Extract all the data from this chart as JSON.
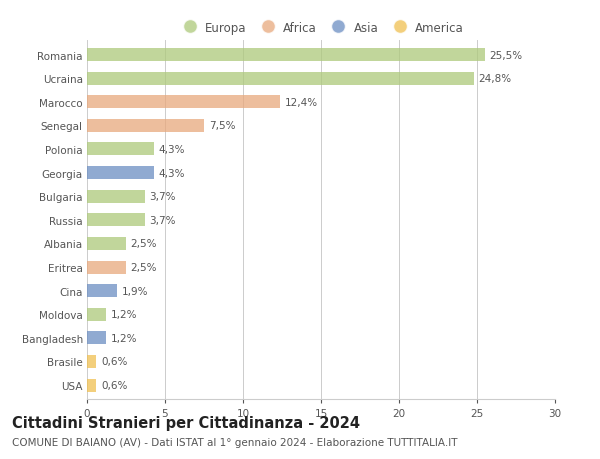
{
  "countries": [
    "Romania",
    "Ucraina",
    "Marocco",
    "Senegal",
    "Polonia",
    "Georgia",
    "Bulgaria",
    "Russia",
    "Albania",
    "Eritrea",
    "Cina",
    "Moldova",
    "Bangladesh",
    "Brasile",
    "USA"
  ],
  "values": [
    25.5,
    24.8,
    12.4,
    7.5,
    4.3,
    4.3,
    3.7,
    3.7,
    2.5,
    2.5,
    1.9,
    1.2,
    1.2,
    0.6,
    0.6
  ],
  "labels": [
    "25,5%",
    "24,8%",
    "12,4%",
    "7,5%",
    "4,3%",
    "4,3%",
    "3,7%",
    "3,7%",
    "2,5%",
    "2,5%",
    "1,9%",
    "1,2%",
    "1,2%",
    "0,6%",
    "0,6%"
  ],
  "continents": [
    "Europa",
    "Europa",
    "Africa",
    "Africa",
    "Europa",
    "Asia",
    "Europa",
    "Europa",
    "Europa",
    "Africa",
    "Asia",
    "Europa",
    "Asia",
    "America",
    "America"
  ],
  "colors": {
    "Europa": "#adc97a",
    "Africa": "#e8a87c",
    "Asia": "#6b8ec2",
    "America": "#f0c050"
  },
  "xlim": [
    0,
    30
  ],
  "xticks": [
    0,
    5,
    10,
    15,
    20,
    25,
    30
  ],
  "title": "Cittadini Stranieri per Cittadinanza - 2024",
  "subtitle": "COMUNE DI BAIANO (AV) - Dati ISTAT al 1° gennaio 2024 - Elaborazione TUTTITALIA.IT",
  "title_fontsize": 10.5,
  "subtitle_fontsize": 7.5,
  "label_fontsize": 7.5,
  "tick_fontsize": 7.5,
  "legend_fontsize": 8.5,
  "bg_color": "#ffffff",
  "grid_color": "#cccccc",
  "bar_height": 0.55,
  "bar_alpha": 0.75
}
